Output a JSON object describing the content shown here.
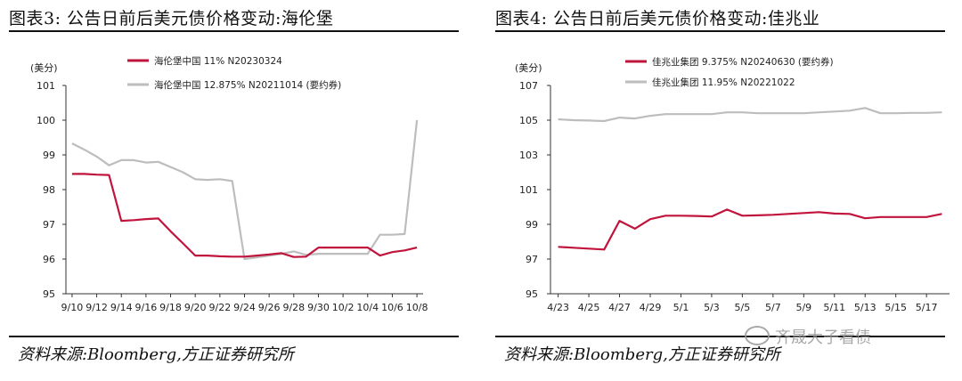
{
  "panels": [
    {
      "title": "图表3:   公告日前后美元债价格变动:海伦堡",
      "source": "资料来源:Bloomberg,方正证券研究所"
    },
    {
      "title": "图表4:   公告日前后美元债价格变动:佳兆业",
      "source": "资料来源:Bloomberg,方正证券研究所"
    }
  ],
  "watermark": {
    "text": "齐晟大子看债"
  },
  "chart_data": [
    {
      "type": "line",
      "unit_label": "(美分)",
      "ylim": [
        95,
        101
      ],
      "yticks": [
        95,
        96,
        97,
        98,
        99,
        100,
        101
      ],
      "categories": [
        "9/10",
        "9/11",
        "9/12",
        "9/13",
        "9/14",
        "9/15",
        "9/16",
        "9/17",
        "9/18",
        "9/19",
        "9/20",
        "9/21",
        "9/22",
        "9/23",
        "9/24",
        "9/25",
        "9/26",
        "9/27",
        "9/28",
        "9/29",
        "9/30",
        "10/1",
        "10/2",
        "10/3",
        "10/4",
        "10/5",
        "10/6",
        "10/7",
        "10/8"
      ],
      "xtick_labels": [
        "9/10",
        "9/12",
        "9/14",
        "9/16",
        "9/18",
        "9/20",
        "9/22",
        "9/24",
        "9/26",
        "9/28",
        "9/30",
        "10/2",
        "10/4",
        "10/6",
        "10/8"
      ],
      "legend_position": "top",
      "series": [
        {
          "name": "海伦堡中国 11% N20230324",
          "color": "#c0143c",
          "values": [
            98.45,
            98.45,
            98.43,
            98.42,
            97.1,
            97.12,
            97.15,
            97.17,
            96.8,
            96.45,
            96.1,
            96.1,
            96.08,
            96.07,
            96.07,
            96.1,
            96.13,
            96.17,
            96.06,
            96.07,
            96.33,
            96.33,
            96.33,
            96.33,
            96.33,
            96.1,
            96.2,
            96.25,
            96.33
          ]
        },
        {
          "name": "海伦堡中国 12.875% N20211014 (要约券)",
          "color": "#bdbdbd",
          "values": [
            99.33,
            99.15,
            98.95,
            98.7,
            98.85,
            98.85,
            98.78,
            98.8,
            98.65,
            98.5,
            98.3,
            98.28,
            98.3,
            98.25,
            96.0,
            96.05,
            96.1,
            96.15,
            96.22,
            96.12,
            96.15,
            96.15,
            96.15,
            96.15,
            96.15,
            96.7,
            96.7,
            96.72,
            100.0
          ]
        }
      ]
    },
    {
      "type": "line",
      "unit_label": "(美分)",
      "ylim": [
        95,
        107
      ],
      "yticks": [
        95,
        97,
        99,
        101,
        103,
        105,
        107
      ],
      "categories": [
        "4/23",
        "4/24",
        "4/25",
        "4/26",
        "4/27",
        "4/28",
        "4/29",
        "4/30",
        "5/1",
        "5/2",
        "5/3",
        "5/4",
        "5/5",
        "5/6",
        "5/7",
        "5/8",
        "5/9",
        "5/10",
        "5/11",
        "5/12",
        "5/13",
        "5/14",
        "5/15",
        "5/16",
        "5/17",
        "5/18"
      ],
      "xtick_labels": [
        "4/23",
        "4/25",
        "4/27",
        "4/29",
        "5/1",
        "5/3",
        "5/5",
        "5/7",
        "5/9",
        "5/11",
        "5/13",
        "5/15",
        "5/17"
      ],
      "legend_position": "top",
      "series": [
        {
          "name": "佳兆业集团 9.375% N20240630 (要约券)",
          "color": "#c0143c",
          "values": [
            97.7,
            97.65,
            97.6,
            97.55,
            99.2,
            98.75,
            99.3,
            99.5,
            99.5,
            99.48,
            99.45,
            99.85,
            99.5,
            99.52,
            99.55,
            99.6,
            99.65,
            99.7,
            99.62,
            99.6,
            99.35,
            99.42,
            99.42,
            99.42,
            99.42,
            99.6
          ]
        },
        {
          "name": "佳兆业集团 11.95% N20221022",
          "color": "#bdbdbd",
          "values": [
            105.05,
            105.0,
            104.98,
            104.95,
            105.15,
            105.1,
            105.25,
            105.35,
            105.35,
            105.35,
            105.35,
            105.45,
            105.45,
            105.4,
            105.4,
            105.4,
            105.4,
            105.45,
            105.5,
            105.55,
            105.7,
            105.4,
            105.4,
            105.42,
            105.42,
            105.45
          ]
        }
      ]
    }
  ]
}
